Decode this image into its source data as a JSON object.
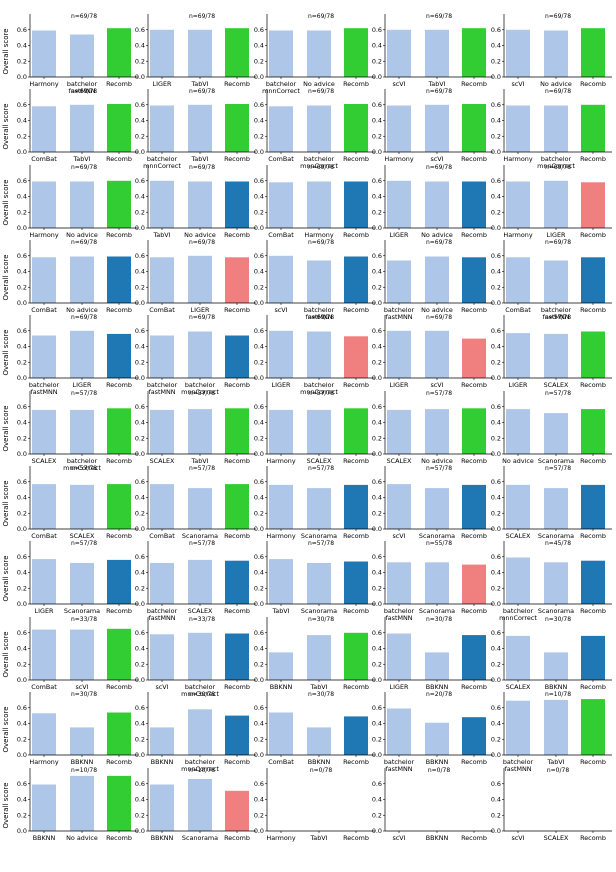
{
  "figure": {
    "ylabel": "Overall score",
    "yticks": [
      0.0,
      0.2,
      0.4,
      0.6
    ],
    "ytick_labels": [
      "0.0",
      "0.2",
      "0.4",
      "0.6"
    ],
    "ylim": [
      0,
      0.8
    ],
    "colors": {
      "baseline": "#aec7e8",
      "recomb_better": "#32cd32",
      "recomb_equal": "#1f77b4",
      "recomb_worse": "#f08080"
    }
  },
  "chart_data": [
    {
      "type": "bar",
      "title": "n=69/78",
      "categories": [
        "Harmony",
        "batchelor\nfastMNN",
        "Recomb"
      ],
      "values": [
        0.59,
        0.54,
        0.62
      ],
      "recomb_color": "#32cd32"
    },
    {
      "type": "bar",
      "title": "n=69/78",
      "categories": [
        "LIGER",
        "TabVI",
        "Recomb"
      ],
      "values": [
        0.6,
        0.6,
        0.62
      ],
      "recomb_color": "#32cd32"
    },
    {
      "type": "bar",
      "title": "n=69/78",
      "categories": [
        "batchelor\nmnnCorrect",
        "No advice",
        "Recomb"
      ],
      "values": [
        0.59,
        0.59,
        0.62
      ],
      "recomb_color": "#32cd32"
    },
    {
      "type": "bar",
      "title": "n=69/78",
      "categories": [
        "scVI",
        "TabVI",
        "Recomb"
      ],
      "values": [
        0.6,
        0.6,
        0.62
      ],
      "recomb_color": "#32cd32"
    },
    {
      "type": "bar",
      "title": "n=69/78",
      "categories": [
        "scVI",
        "No advice",
        "Recomb"
      ],
      "values": [
        0.6,
        0.59,
        0.62
      ],
      "recomb_color": "#32cd32"
    },
    {
      "type": "bar",
      "title": "n=69/78",
      "categories": [
        "ComBat",
        "TabVI",
        "Recomb"
      ],
      "values": [
        0.58,
        0.6,
        0.61
      ],
      "recomb_color": "#32cd32"
    },
    {
      "type": "bar",
      "title": "n=69/78",
      "categories": [
        "batchelor\nmnnCorrect",
        "TabVI",
        "Recomb"
      ],
      "values": [
        0.59,
        0.6,
        0.61
      ],
      "recomb_color": "#32cd32"
    },
    {
      "type": "bar",
      "title": "n=69/78",
      "categories": [
        "ComBat",
        "batchelor\nmnnCorrect",
        "Recomb"
      ],
      "values": [
        0.58,
        0.59,
        0.61
      ],
      "recomb_color": "#32cd32"
    },
    {
      "type": "bar",
      "title": "n=69/78",
      "categories": [
        "Harmony",
        "scVI",
        "Recomb"
      ],
      "values": [
        0.59,
        0.6,
        0.61
      ],
      "recomb_color": "#32cd32"
    },
    {
      "type": "bar",
      "title": "n=69/78",
      "categories": [
        "Harmony",
        "batchelor\nmnnCorrect",
        "Recomb"
      ],
      "values": [
        0.59,
        0.59,
        0.6
      ],
      "recomb_color": "#32cd32"
    },
    {
      "type": "bar",
      "title": "n=69/78",
      "categories": [
        "Harmony",
        "No advice",
        "Recomb"
      ],
      "values": [
        0.59,
        0.59,
        0.6
      ],
      "recomb_color": "#32cd32"
    },
    {
      "type": "bar",
      "title": "n=69/78",
      "categories": [
        "TabVI",
        "No advice",
        "Recomb"
      ],
      "values": [
        0.6,
        0.59,
        0.59
      ],
      "recomb_color": "#1f77b4"
    },
    {
      "type": "bar",
      "title": "n=69/78",
      "categories": [
        "ComBat",
        "Harmony",
        "Recomb"
      ],
      "values": [
        0.58,
        0.59,
        0.59
      ],
      "recomb_color": "#1f77b4"
    },
    {
      "type": "bar",
      "title": "n=69/78",
      "categories": [
        "LIGER",
        "No advice",
        "Recomb"
      ],
      "values": [
        0.6,
        0.59,
        0.59
      ],
      "recomb_color": "#1f77b4"
    },
    {
      "type": "bar",
      "title": "n=69/78",
      "categories": [
        "Harmony",
        "LIGER",
        "Recomb"
      ],
      "values": [
        0.59,
        0.6,
        0.58
      ],
      "recomb_color": "#f08080"
    },
    {
      "type": "bar",
      "title": "n=69/78",
      "categories": [
        "ComBat",
        "No advice",
        "Recomb"
      ],
      "values": [
        0.58,
        0.59,
        0.59
      ],
      "recomb_color": "#1f77b4"
    },
    {
      "type": "bar",
      "title": "n=69/78",
      "categories": [
        "ComBat",
        "LIGER",
        "Recomb"
      ],
      "values": [
        0.58,
        0.6,
        0.58
      ],
      "recomb_color": "#f08080"
    },
    {
      "type": "bar",
      "title": "n=69/78",
      "categories": [
        "scVI",
        "batchelor\nfastMNN",
        "Recomb"
      ],
      "values": [
        0.6,
        0.54,
        0.59
      ],
      "recomb_color": "#1f77b4"
    },
    {
      "type": "bar",
      "title": "n=69/78",
      "categories": [
        "batchelor\nfastMNN",
        "No advice",
        "Recomb"
      ],
      "values": [
        0.54,
        0.59,
        0.58
      ],
      "recomb_color": "#1f77b4"
    },
    {
      "type": "bar",
      "title": "n=69/78",
      "categories": [
        "ComBat",
        "batchelor\nfastMNN",
        "Recomb"
      ],
      "values": [
        0.58,
        0.54,
        0.58
      ],
      "recomb_color": "#1f77b4"
    },
    {
      "type": "bar",
      "title": "n=69/78",
      "categories": [
        "batchelor\nfastMNN",
        "LIGER",
        "Recomb"
      ],
      "values": [
        0.54,
        0.6,
        0.56
      ],
      "recomb_color": "#1f77b4"
    },
    {
      "type": "bar",
      "title": "n=69/78",
      "categories": [
        "batchelor\nfastMNN",
        "batchelor\nmnnCorrect",
        "Recomb"
      ],
      "values": [
        0.54,
        0.59,
        0.54
      ],
      "recomb_color": "#1f77b4"
    },
    {
      "type": "bar",
      "title": "n=69/78",
      "categories": [
        "LIGER",
        "batchelor\nmnnCorrect",
        "Recomb"
      ],
      "values": [
        0.6,
        0.59,
        0.53
      ],
      "recomb_color": "#f08080"
    },
    {
      "type": "bar",
      "title": "n=69/78",
      "categories": [
        "LIGER",
        "scVI",
        "Recomb"
      ],
      "values": [
        0.6,
        0.6,
        0.5
      ],
      "recomb_color": "#f08080"
    },
    {
      "type": "bar",
      "title": "n=57/78",
      "categories": [
        "LIGER",
        "SCALEX",
        "Recomb"
      ],
      "values": [
        0.57,
        0.56,
        0.59
      ],
      "recomb_color": "#32cd32"
    },
    {
      "type": "bar",
      "title": "n=57/78",
      "categories": [
        "SCALEX",
        "batchelor\nmnnCorrect",
        "Recomb"
      ],
      "values": [
        0.56,
        0.56,
        0.58
      ],
      "recomb_color": "#32cd32"
    },
    {
      "type": "bar",
      "title": "n=57/78",
      "categories": [
        "SCALEX",
        "TabVI",
        "Recomb"
      ],
      "values": [
        0.56,
        0.57,
        0.58
      ],
      "recomb_color": "#32cd32"
    },
    {
      "type": "bar",
      "title": "n=57/78",
      "categories": [
        "Harmony",
        "SCALEX",
        "Recomb"
      ],
      "values": [
        0.56,
        0.56,
        0.58
      ],
      "recomb_color": "#32cd32"
    },
    {
      "type": "bar",
      "title": "n=57/78",
      "categories": [
        "SCALEX",
        "No advice",
        "Recomb"
      ],
      "values": [
        0.56,
        0.57,
        0.58
      ],
      "recomb_color": "#32cd32"
    },
    {
      "type": "bar",
      "title": "n=57/78",
      "categories": [
        "No advice",
        "Scanorama",
        "Recomb"
      ],
      "values": [
        0.57,
        0.52,
        0.57
      ],
      "recomb_color": "#32cd32"
    },
    {
      "type": "bar",
      "title": "n=57/78",
      "categories": [
        "ComBat",
        "SCALEX",
        "Recomb"
      ],
      "values": [
        0.57,
        0.56,
        0.57
      ],
      "recomb_color": "#32cd32"
    },
    {
      "type": "bar",
      "title": "n=57/78",
      "categories": [
        "ComBat",
        "Scanorama",
        "Recomb"
      ],
      "values": [
        0.57,
        0.52,
        0.57
      ],
      "recomb_color": "#32cd32"
    },
    {
      "type": "bar",
      "title": "n=57/78",
      "categories": [
        "Harmony",
        "Scanorama",
        "Recomb"
      ],
      "values": [
        0.56,
        0.52,
        0.56
      ],
      "recomb_color": "#1f77b4"
    },
    {
      "type": "bar",
      "title": "n=57/78",
      "categories": [
        "scVI",
        "Scanorama",
        "Recomb"
      ],
      "values": [
        0.57,
        0.52,
        0.56
      ],
      "recomb_color": "#1f77b4"
    },
    {
      "type": "bar",
      "title": "n=57/78",
      "categories": [
        "SCALEX",
        "Scanorama",
        "Recomb"
      ],
      "values": [
        0.56,
        0.52,
        0.56
      ],
      "recomb_color": "#1f77b4"
    },
    {
      "type": "bar",
      "title": "n=57/78",
      "categories": [
        "LIGER",
        "Scanorama",
        "Recomb"
      ],
      "values": [
        0.57,
        0.52,
        0.56
      ],
      "recomb_color": "#1f77b4"
    },
    {
      "type": "bar",
      "title": "n=57/78",
      "categories": [
        "batchelor\nfastMNN",
        "SCALEX",
        "Recomb"
      ],
      "values": [
        0.52,
        0.56,
        0.55
      ],
      "recomb_color": "#1f77b4"
    },
    {
      "type": "bar",
      "title": "n=57/78",
      "categories": [
        "TabVI",
        "Scanorama",
        "Recomb"
      ],
      "values": [
        0.57,
        0.52,
        0.54
      ],
      "recomb_color": "#1f77b4"
    },
    {
      "type": "bar",
      "title": "n=55/78",
      "categories": [
        "batchelor\nfastMNN",
        "Scanorama",
        "Recomb"
      ],
      "values": [
        0.53,
        0.53,
        0.5
      ],
      "recomb_color": "#f08080"
    },
    {
      "type": "bar",
      "title": "n=45/78",
      "categories": [
        "batchelor\nmnnCorrect",
        "Scanorama",
        "Recomb"
      ],
      "values": [
        0.59,
        0.53,
        0.55
      ],
      "recomb_color": "#1f77b4"
    },
    {
      "type": "bar",
      "title": "n=33/78",
      "categories": [
        "ComBat",
        "scVI",
        "Recomb"
      ],
      "values": [
        0.64,
        0.64,
        0.65
      ],
      "recomb_color": "#32cd32"
    },
    {
      "type": "bar",
      "title": "n=33/78",
      "categories": [
        "scVI",
        "batchelor\nmnnCorrect",
        "Recomb"
      ],
      "values": [
        0.58,
        0.6,
        0.59
      ],
      "recomb_color": "#1f77b4"
    },
    {
      "type": "bar",
      "title": "n=30/78",
      "categories": [
        "BBKNN",
        "TabVI",
        "Recomb"
      ],
      "values": [
        0.35,
        0.57,
        0.6
      ],
      "recomb_color": "#32cd32"
    },
    {
      "type": "bar",
      "title": "n=30/78",
      "categories": [
        "LIGER",
        "BBKNN",
        "Recomb"
      ],
      "values": [
        0.59,
        0.35,
        0.57
      ],
      "recomb_color": "#1f77b4"
    },
    {
      "type": "bar",
      "title": "n=30/78",
      "categories": [
        "SCALEX",
        "BBKNN",
        "Recomb"
      ],
      "values": [
        0.56,
        0.35,
        0.56
      ],
      "recomb_color": "#1f77b4"
    },
    {
      "type": "bar",
      "title": "n=30/78",
      "categories": [
        "Harmony",
        "BBKNN",
        "Recomb"
      ],
      "values": [
        0.53,
        0.35,
        0.54
      ],
      "recomb_color": "#32cd32"
    },
    {
      "type": "bar",
      "title": "n=30/78",
      "categories": [
        "BBKNN",
        "batchelor\nmnnCorrect",
        "Recomb"
      ],
      "values": [
        0.35,
        0.58,
        0.5
      ],
      "recomb_color": "#1f77b4"
    },
    {
      "type": "bar",
      "title": "n=30/78",
      "categories": [
        "ComBat",
        "BBKNN",
        "Recomb"
      ],
      "values": [
        0.54,
        0.35,
        0.49
      ],
      "recomb_color": "#1f77b4"
    },
    {
      "type": "bar",
      "title": "n=20/78",
      "categories": [
        "batchelor\nfastMNN",
        "BBKNN",
        "Recomb"
      ],
      "values": [
        0.59,
        0.41,
        0.48
      ],
      "recomb_color": "#1f77b4"
    },
    {
      "type": "bar",
      "title": "n=10/78",
      "categories": [
        "batchelor\nfastMNN",
        "TabVI",
        "Recomb"
      ],
      "values": [
        0.69,
        0.7,
        0.71
      ],
      "recomb_color": "#32cd32"
    },
    {
      "type": "bar",
      "title": "n=10/78",
      "categories": [
        "BBKNN",
        "No advice",
        "Recomb"
      ],
      "values": [
        0.59,
        0.7,
        0.7
      ],
      "recomb_color": "#32cd32"
    },
    {
      "type": "bar",
      "title": "n=10/78",
      "categories": [
        "BBKNN",
        "Scanorama",
        "Recomb"
      ],
      "values": [
        0.59,
        0.66,
        0.51
      ],
      "recomb_color": "#f08080"
    },
    {
      "type": "bar",
      "title": "n=0/78",
      "categories": [
        "Harmony",
        "TabVI",
        "Recomb"
      ],
      "values": [
        null,
        null,
        null
      ],
      "recomb_color": "#1f77b4"
    },
    {
      "type": "bar",
      "title": "n=0/78",
      "categories": [
        "scVI",
        "BBKNN",
        "Recomb"
      ],
      "values": [
        null,
        null,
        null
      ],
      "recomb_color": "#1f77b4"
    },
    {
      "type": "bar",
      "title": "n=0/78",
      "categories": [
        "scVI",
        "SCALEX",
        "Recomb"
      ],
      "values": [
        null,
        null,
        null
      ],
      "recomb_color": "#1f77b4"
    }
  ]
}
